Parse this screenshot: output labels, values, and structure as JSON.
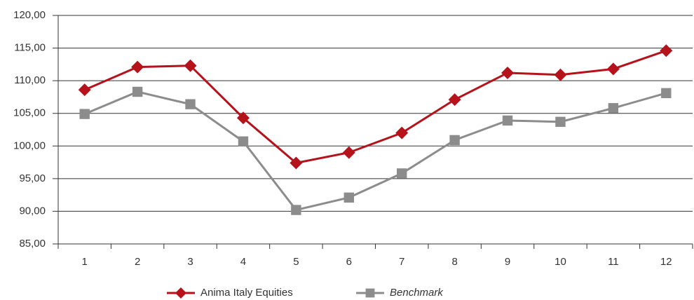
{
  "chart_data": {
    "type": "line",
    "categories": [
      "1",
      "2",
      "3",
      "4",
      "5",
      "6",
      "7",
      "8",
      "9",
      "10",
      "11",
      "12"
    ],
    "series": [
      {
        "name": "Anima Italy Equities",
        "color": "#b5121b",
        "marker": "diamond",
        "values": [
          108.6,
          112.1,
          112.3,
          104.3,
          97.4,
          99.0,
          102.0,
          107.1,
          111.2,
          110.9,
          111.8,
          114.6
        ]
      },
      {
        "name": "Benchmark",
        "color": "#8c8c8c",
        "marker": "square",
        "italic": true,
        "values": [
          104.9,
          108.3,
          106.4,
          100.7,
          90.2,
          92.1,
          95.8,
          100.9,
          103.9,
          103.7,
          105.8,
          108.1
        ]
      }
    ],
    "ylim": [
      85,
      120
    ],
    "yticks": [
      {
        "value": 85,
        "label": "85,00"
      },
      {
        "value": 90,
        "label": "90,00"
      },
      {
        "value": 95,
        "label": "95,00"
      },
      {
        "value": 100,
        "label": "100,00"
      },
      {
        "value": 105,
        "label": "105,00"
      },
      {
        "value": 110,
        "label": "110,00"
      },
      {
        "value": 115,
        "label": "115,00"
      },
      {
        "value": 120,
        "label": "120,00"
      }
    ],
    "grid": true,
    "legend": "bottom"
  }
}
